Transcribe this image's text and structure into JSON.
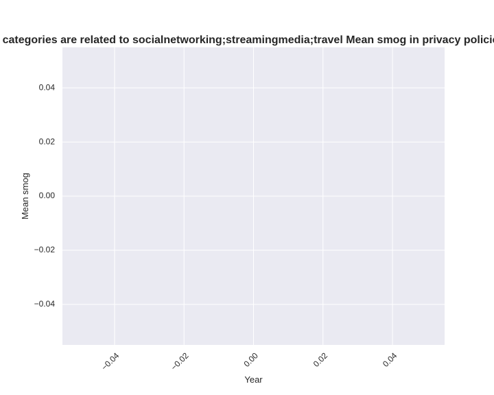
{
  "chart_data": {
    "type": "line",
    "title": "categories are related to socialnetworking;streamingmedia;travel Mean smog in privacy policies",
    "xlabel": "Year",
    "ylabel": "Mean smog",
    "xlim": [
      -0.055,
      0.055
    ],
    "ylim": [
      -0.055,
      0.055
    ],
    "x_ticks": [
      -0.04,
      -0.02,
      0.0,
      0.02,
      0.04
    ],
    "x_tick_labels": [
      "−0.04",
      "−0.02",
      "0.00",
      "0.02",
      "0.04"
    ],
    "y_ticks": [
      0.04,
      0.02,
      0.0,
      -0.02,
      -0.04
    ],
    "y_tick_labels": [
      "0.04",
      "0.02",
      "0.00",
      "−0.02",
      "−0.04"
    ],
    "x_tick_rotation": 45,
    "grid": true,
    "series": [],
    "colors": {
      "plot_background": "#eaeaf2",
      "grid": "#ffffff",
      "text": "#262626"
    }
  }
}
